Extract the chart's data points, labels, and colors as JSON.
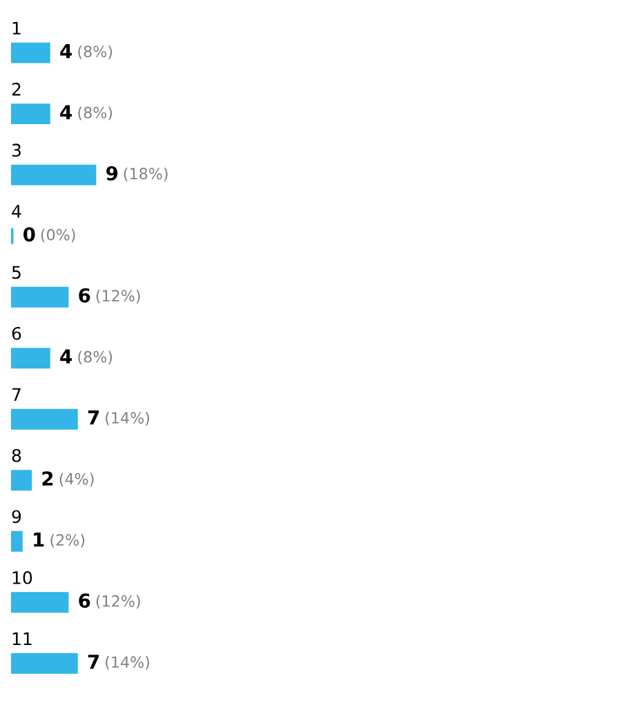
{
  "chart_data": {
    "type": "bar",
    "orientation": "horizontal",
    "categories": [
      "1",
      "2",
      "3",
      "4",
      "5",
      "6",
      "7",
      "8",
      "9",
      "10",
      "11"
    ],
    "values": [
      4,
      4,
      9,
      0,
      6,
      4,
      7,
      2,
      1,
      6,
      7
    ],
    "value_labels": [
      "4 (8%)",
      "4 (8%)",
      "9 (18%)",
      "0 (0%)",
      "6 (12%)",
      "4 (8%)",
      "7 (14%)",
      "2 (4%)",
      "1 (2%)",
      "6 (12%)",
      "7 (14%)"
    ],
    "color": "#33b5e8"
  }
}
